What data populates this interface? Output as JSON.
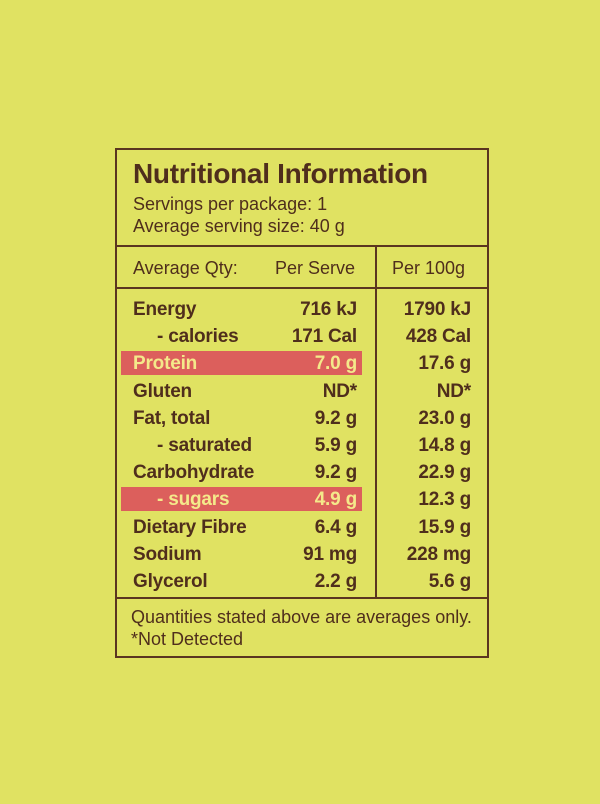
{
  "panel": {
    "title": "Nutritional Information",
    "servings": "Servings per package: 1",
    "serving_size": "Average serving size: 40 g",
    "headers": {
      "qty": "Average Qty:",
      "per_serve": "Per Serve",
      "per_100g": "Per 100g"
    },
    "rows": [
      {
        "name": "Energy",
        "serve": "716 kJ",
        "per100": "1790 kJ",
        "indent": false,
        "highlight": false
      },
      {
        "name": "- calories",
        "serve": "171 Cal",
        "per100": "428 Cal",
        "indent": true,
        "highlight": false
      },
      {
        "name": "Protein",
        "serve": "7.0 g",
        "per100": "17.6 g",
        "indent": false,
        "highlight": true
      },
      {
        "name": "Gluten",
        "serve": "ND*",
        "per100": "ND*",
        "indent": false,
        "highlight": false
      },
      {
        "name": "Fat, total",
        "serve": "9.2 g",
        "per100": "23.0 g",
        "indent": false,
        "highlight": false
      },
      {
        "name": "- saturated",
        "serve": "5.9 g",
        "per100": "14.8 g",
        "indent": true,
        "highlight": false
      },
      {
        "name": "Carbohydrate",
        "serve": "9.2 g",
        "per100": "22.9 g",
        "indent": false,
        "highlight": false
      },
      {
        "name": "- sugars",
        "serve": "4.9 g",
        "per100": "12.3 g",
        "indent": true,
        "highlight": true
      },
      {
        "name": "Dietary Fibre",
        "serve": "6.4 g",
        "per100": "15.9 g",
        "indent": false,
        "highlight": false
      },
      {
        "name": "Sodium",
        "serve": "91 mg",
        "per100": "228 mg",
        "indent": false,
        "highlight": false
      },
      {
        "name": "Glycerol",
        "serve": "2.2 g",
        "per100": "5.6 g",
        "indent": false,
        "highlight": false
      }
    ],
    "footnote1": "Quantities stated above are averages only.",
    "footnote2": "*Not Detected"
  },
  "colors": {
    "background": "#e0e262",
    "text": "#4f2e1c",
    "highlight": "#dc5f5c",
    "highlight_text": "#f4e98a"
  }
}
